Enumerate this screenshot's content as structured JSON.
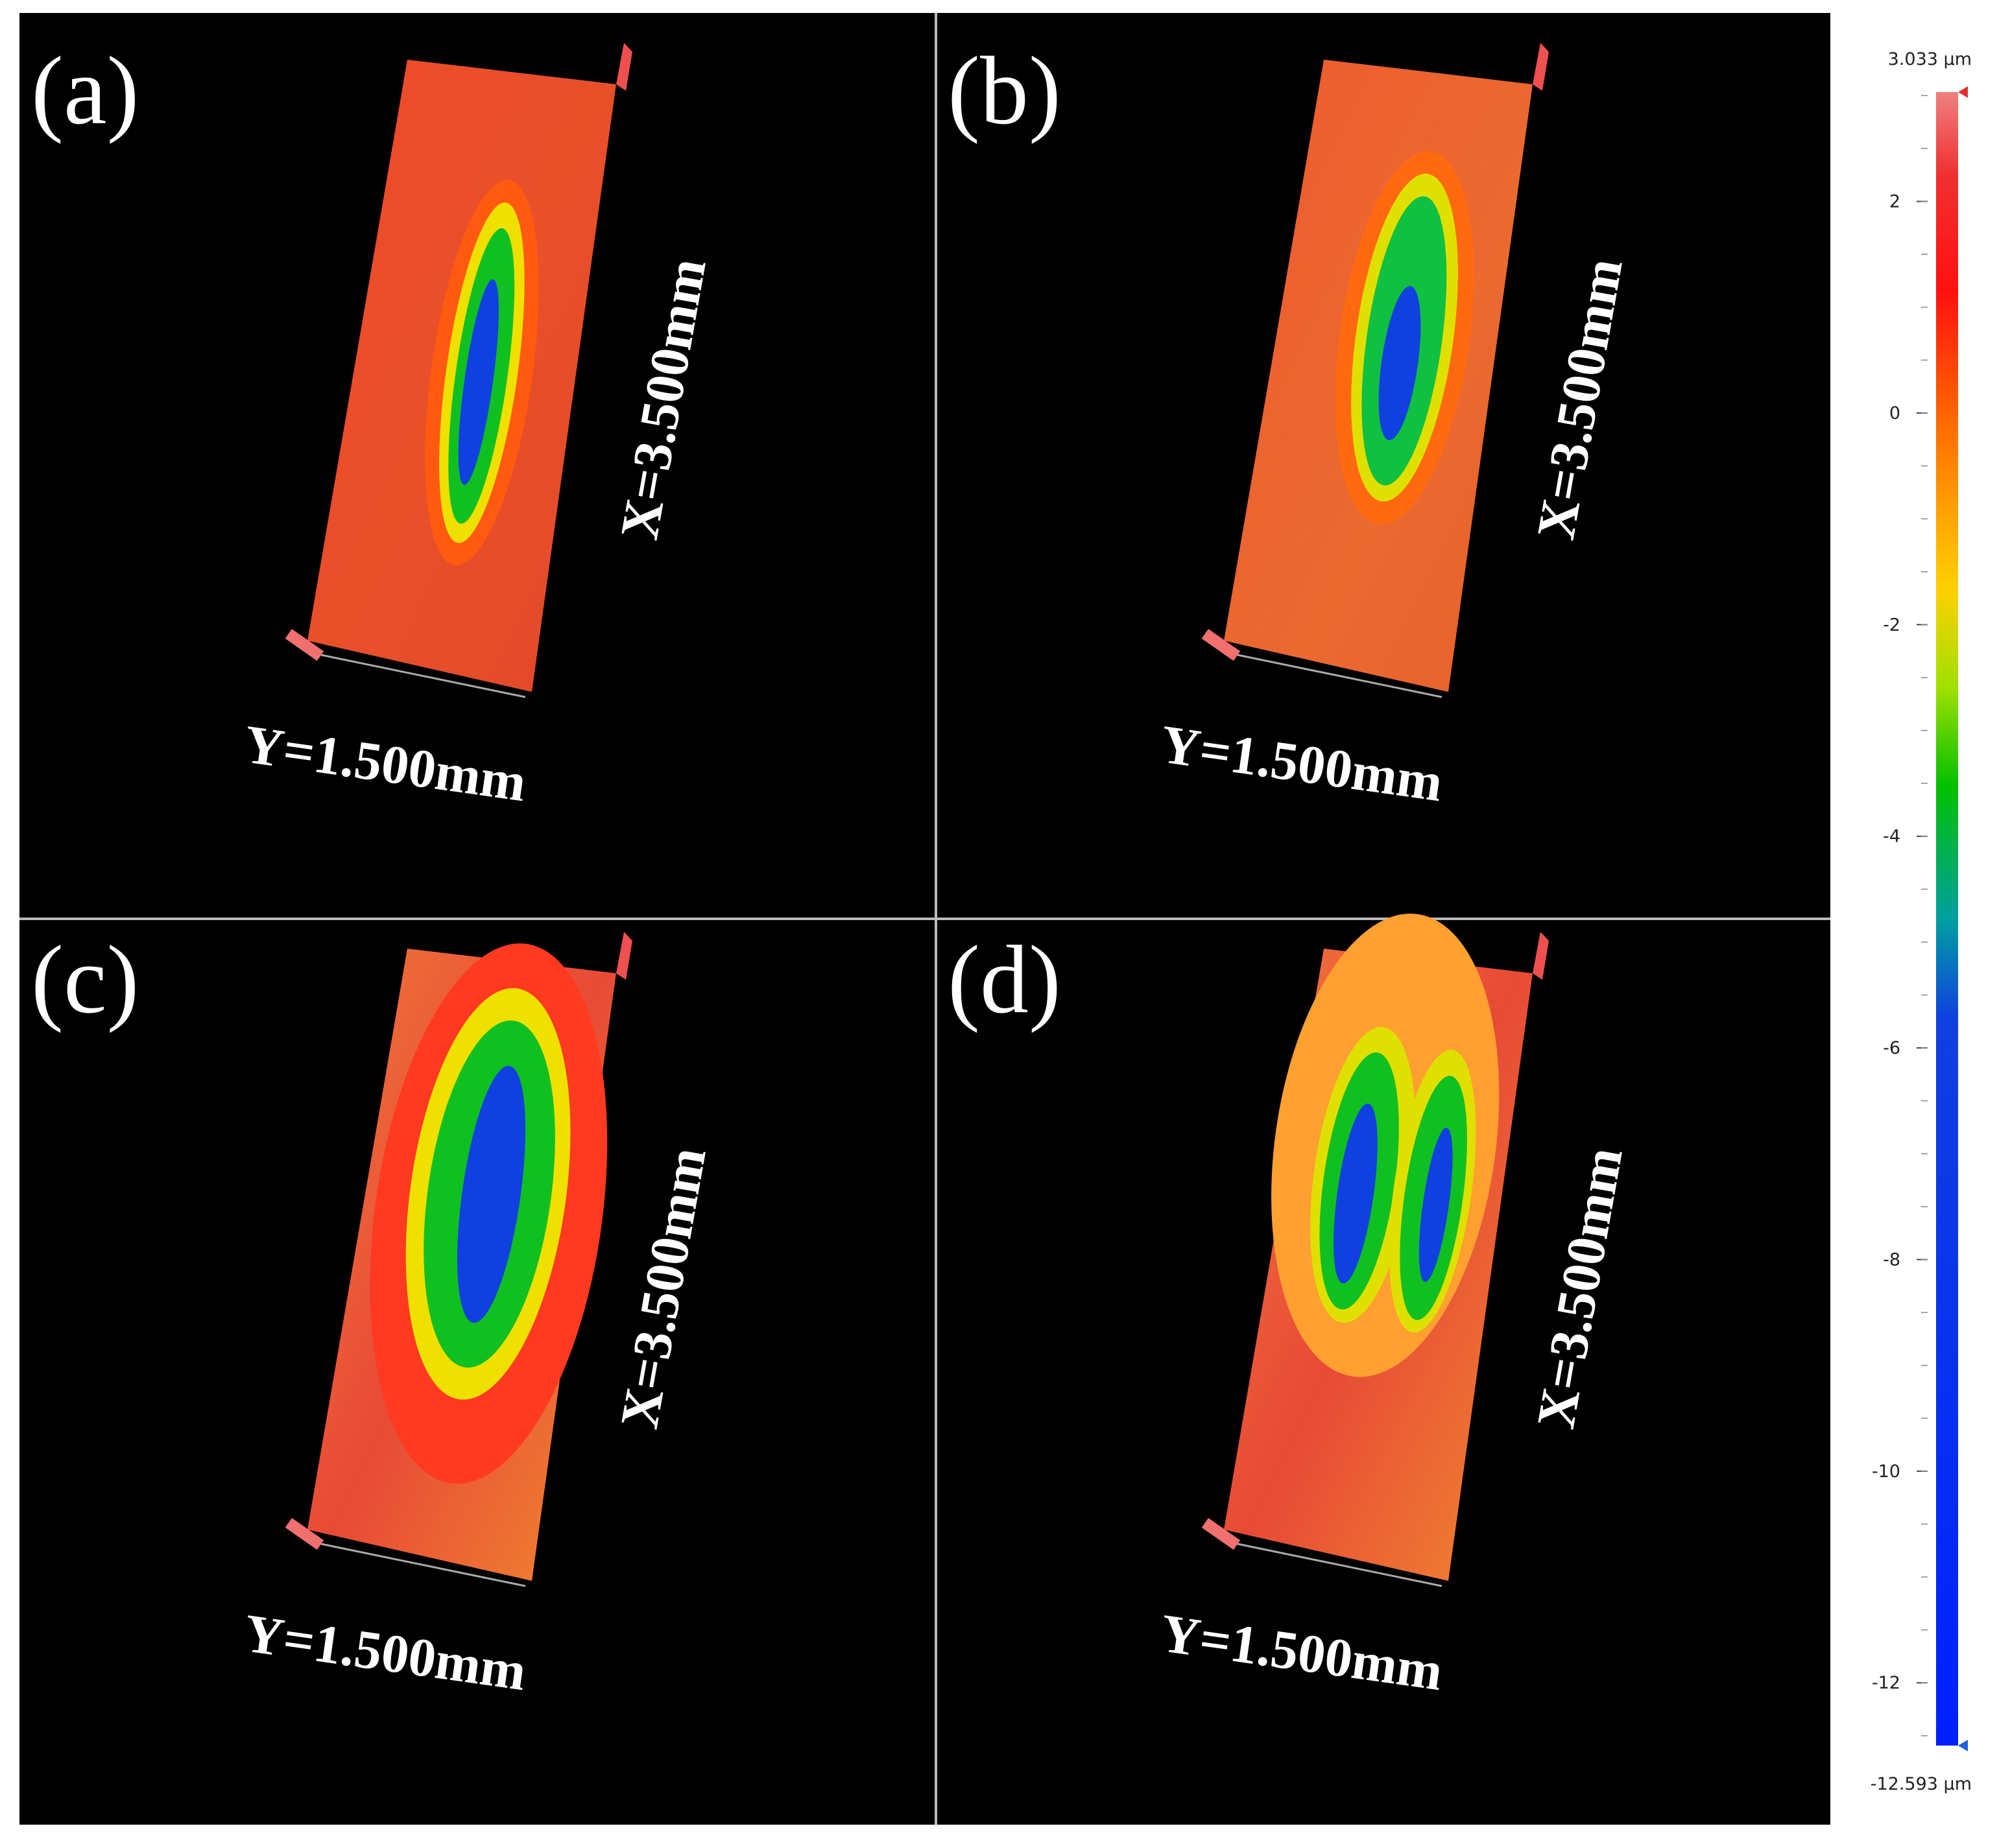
{
  "panels": [
    {
      "label": "(a)",
      "x_label": "X=3.500mm",
      "y_label": "Y=1.500mm"
    },
    {
      "label": "(b)",
      "x_label": "X=3.500mm",
      "y_label": "Y=1.500mm"
    },
    {
      "label": "(c)",
      "x_label": "X=3.500mm",
      "y_label": "Y=1.500mm"
    },
    {
      "label": "(d)",
      "x_label": "X=3.500mm",
      "y_label": "Y=1.500mm"
    }
  ],
  "colorbar": {
    "max_label": "3.033 µm",
    "min_label": "-12.593 µm",
    "range": [
      -12.593,
      3.033
    ],
    "ticks": [
      2,
      0,
      -2,
      -4,
      -6,
      -8,
      -10,
      -12
    ]
  }
}
